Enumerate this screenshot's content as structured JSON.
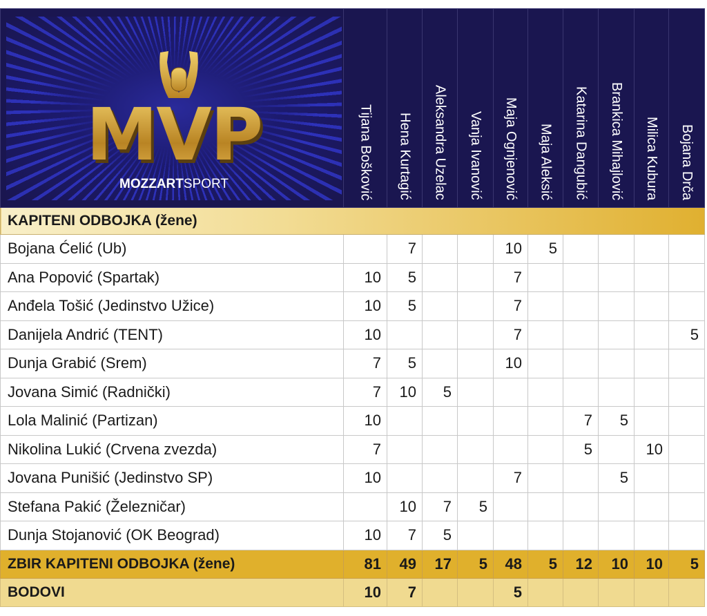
{
  "logo": {
    "title": "MVP",
    "brand_bold": "MOZZART",
    "brand_light": "SPORT"
  },
  "columns": [
    "Tijana Bošković",
    "Hena Kurtagić",
    "Aleksandra Uzelac",
    "Vanja Ivanović",
    "Maja Ognjenović",
    "Maja Aleksić",
    "Katarina Dangubić",
    "Brankica Mihajlović",
    "Milica Kubura",
    "Bojana Drča"
  ],
  "section_title": "KAPITENI ODBOJKA (žene)",
  "rows": [
    {
      "name": "Bojana Ćelić (Ub)",
      "values": [
        "",
        "7",
        "",
        "",
        "10",
        "5",
        "",
        "",
        "",
        ""
      ]
    },
    {
      "name": "Ana Popović (Spartak)",
      "values": [
        "10",
        "5",
        "",
        "",
        "7",
        "",
        "",
        "",
        "",
        ""
      ]
    },
    {
      "name": "Anđela Tošić (Jedinstvo Užice)",
      "values": [
        "10",
        "5",
        "",
        "",
        "7",
        "",
        "",
        "",
        "",
        ""
      ]
    },
    {
      "name": "Danijela Andrić (TENT)",
      "values": [
        "10",
        "",
        "",
        "",
        "7",
        "",
        "",
        "",
        "",
        "5"
      ]
    },
    {
      "name": "Dunja Grabić (Srem)",
      "values": [
        "7",
        "5",
        "",
        "",
        "10",
        "",
        "",
        "",
        "",
        ""
      ]
    },
    {
      "name": "Jovana Simić (Radnički)",
      "values": [
        "7",
        "10",
        "5",
        "",
        "",
        "",
        "",
        "",
        "",
        ""
      ]
    },
    {
      "name": "Lola Malinić (Partizan)",
      "values": [
        "10",
        "",
        "",
        "",
        "",
        "",
        "7",
        "5",
        "",
        ""
      ]
    },
    {
      "name": "Nikolina Lukić (Crvena zvezda)",
      "values": [
        "7",
        "",
        "",
        "",
        "",
        "",
        "5",
        "",
        "10",
        ""
      ]
    },
    {
      "name": "Jovana Punišić (Jedinstvo SP)",
      "values": [
        "10",
        "",
        "",
        "",
        "7",
        "",
        "",
        "5",
        "",
        ""
      ]
    },
    {
      "name": "Stefana Pakić (Železničar)",
      "values": [
        "",
        "10",
        "7",
        "5",
        "",
        "",
        "",
        "",
        "",
        ""
      ]
    },
    {
      "name": "Dunja Stojanović (OK Beograd)",
      "values": [
        "10",
        "7",
        "5",
        "",
        "",
        "",
        "",
        "",
        "",
        ""
      ]
    }
  ],
  "total": {
    "label": "ZBIR KAPITENI ODBOJKA (žene)",
    "values": [
      "81",
      "49",
      "17",
      "5",
      "48",
      "5",
      "12",
      "10",
      "10",
      "5"
    ]
  },
  "points": {
    "label": "BODOVI",
    "values": [
      "10",
      "7",
      "",
      "",
      "5",
      "",
      "",
      "",
      "",
      ""
    ]
  },
  "colors": {
    "header_bg": "#1a1650",
    "gold": "#e0b02c",
    "light_gold": "#f0da90"
  }
}
